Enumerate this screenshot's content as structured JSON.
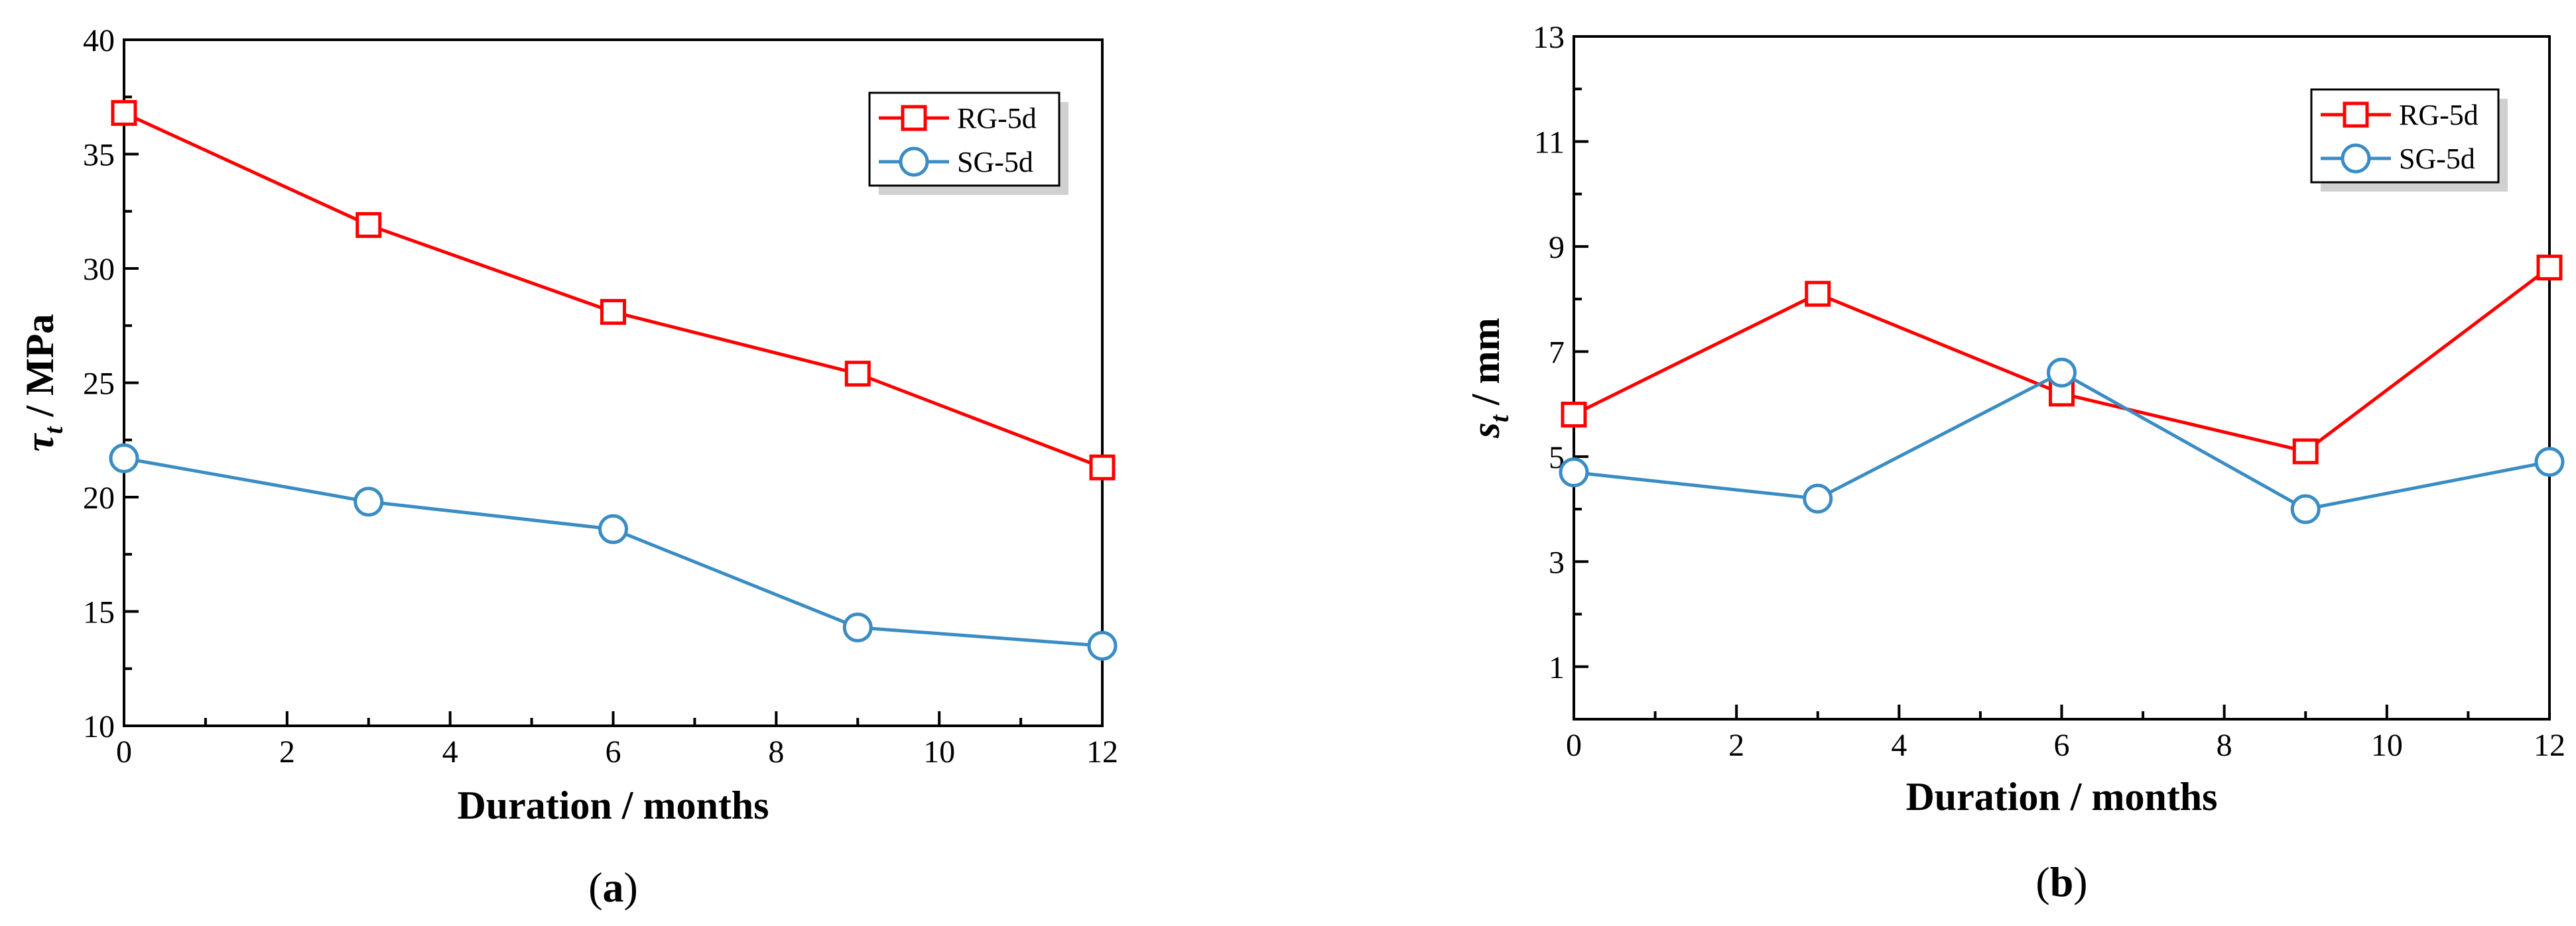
{
  "chart_data": [
    {
      "type": "line",
      "panel_label": "(a)",
      "panel_letter": "a",
      "x": [
        0,
        3,
        6,
        9,
        12
      ],
      "series": [
        {
          "name": "RG-5d",
          "values": [
            36.8,
            31.9,
            28.1,
            25.4,
            21.3
          ],
          "color": "#ff0000",
          "marker": "square"
        },
        {
          "name": "SG-5d",
          "values": [
            21.7,
            19.8,
            18.6,
            14.3,
            13.5
          ],
          "color": "#3a8cc4",
          "marker": "circle"
        }
      ],
      "xlabel": "Duration / months",
      "ylabel_symbol": "τ",
      "ylabel_sub": "t",
      "ylabel_rest": " / MPa",
      "xlim": [
        0,
        12
      ],
      "ylim": [
        10,
        40
      ],
      "xticks": [
        0,
        2,
        4,
        6,
        8,
        10,
        12
      ],
      "yticks": [
        10,
        15,
        20,
        25,
        30,
        35,
        40
      ],
      "grid": false,
      "legend_position": "top-right"
    },
    {
      "type": "line",
      "panel_label": "(b)",
      "panel_letter": "b",
      "x": [
        0,
        3,
        6,
        9,
        12
      ],
      "series": [
        {
          "name": "RG-5d",
          "values": [
            5.8,
            8.1,
            6.2,
            5.1,
            8.6
          ],
          "color": "#ff0000",
          "marker": "square"
        },
        {
          "name": "SG-5d",
          "values": [
            4.7,
            4.2,
            6.6,
            4.0,
            4.9
          ],
          "color": "#3a8cc4",
          "marker": "circle"
        }
      ],
      "xlabel": "Duration / months",
      "ylabel_symbol": "s",
      "ylabel_sub": "t",
      "ylabel_rest": " / mm",
      "xlim": [
        0,
        12
      ],
      "ylim": [
        0,
        13
      ],
      "xticks": [
        0,
        2,
        4,
        6,
        8,
        10,
        12
      ],
      "yticks": [
        1,
        3,
        5,
        7,
        9,
        11,
        13
      ],
      "grid": false,
      "legend_position": "top-right"
    }
  ]
}
